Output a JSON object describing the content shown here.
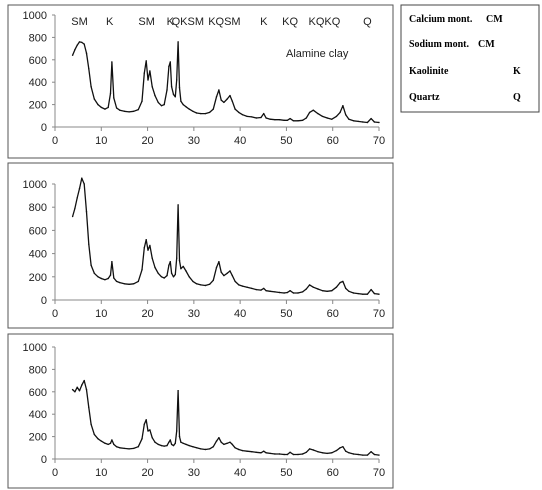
{
  "chart_data": [
    {
      "type": "line",
      "title": "",
      "xlabel": "",
      "ylabel": "",
      "xlim": [
        0,
        70
      ],
      "ylim": [
        0,
        1000
      ],
      "xticks": [
        0,
        10,
        20,
        30,
        40,
        50,
        60,
        70
      ],
      "yticks": [
        0,
        200,
        400,
        600,
        800,
        1000
      ],
      "annotation": "Alamine clay",
      "peak_labels": [
        {
          "text": "SM",
          "x": 5.3
        },
        {
          "text": "K",
          "x": 11.8
        },
        {
          "text": "SM",
          "x": 19.8
        },
        {
          "text": "K",
          "x": 24.9
        },
        {
          "text": "QKSM",
          "x": 28.7
        },
        {
          "text": "KQSM",
          "x": 36.6
        },
        {
          "text": "K",
          "x": 45.1
        },
        {
          "text": "KQ",
          "x": 50.8
        },
        {
          "text": "KQKQ",
          "x": 58.2
        },
        {
          "text": "Q",
          "x": 67.5
        }
      ],
      "series": [
        {
          "x": [
            3.8,
            4.3,
            4.8,
            5.3,
            5.8,
            6.3,
            6.8,
            7.3,
            7.8,
            8.5,
            9.3,
            10.0,
            10.8,
            11.5,
            12.0,
            12.3,
            12.7,
            13.3,
            14.0,
            15.0,
            16.0,
            17.0,
            18.0,
            18.8,
            19.3,
            19.7,
            20.1,
            20.5,
            21.0,
            21.6,
            22.3,
            23.0,
            23.6,
            24.2,
            24.6,
            24.9,
            25.2,
            25.6,
            26.0,
            26.3,
            26.6,
            26.9,
            27.2,
            27.7,
            28.3,
            29.0,
            29.8,
            30.6,
            31.5,
            32.5,
            33.4,
            34.2,
            34.9,
            35.4,
            35.9,
            36.5,
            37.2,
            37.8,
            38.3,
            38.9,
            39.7,
            40.5,
            41.5,
            42.5,
            43.5,
            44.5,
            45.1,
            45.6,
            46.5,
            47.5,
            48.5,
            49.5,
            50.2,
            50.8,
            51.5,
            52.5,
            53.5,
            54.3,
            55.0,
            55.8,
            56.8,
            57.8,
            58.8,
            59.8,
            60.8,
            61.6,
            62.2,
            62.8,
            63.5,
            64.5,
            65.5,
            66.5,
            67.5,
            68.3,
            69.0,
            70.0
          ],
          "values": [
            640,
            690,
            730,
            760,
            755,
            740,
            660,
            520,
            360,
            250,
            200,
            175,
            160,
            175,
            300,
            580,
            260,
            170,
            150,
            140,
            135,
            140,
            155,
            230,
            480,
            590,
            420,
            500,
            360,
            280,
            220,
            190,
            200,
            330,
            540,
            580,
            360,
            290,
            270,
            420,
            760,
            350,
            230,
            200,
            180,
            160,
            140,
            125,
            120,
            120,
            130,
            160,
            270,
            330,
            240,
            220,
            250,
            280,
            230,
            160,
            130,
            110,
            95,
            90,
            80,
            85,
            120,
            80,
            70,
            65,
            65,
            60,
            60,
            75,
            55,
            55,
            60,
            80,
            130,
            150,
            120,
            95,
            80,
            70,
            95,
            130,
            190,
            110,
            70,
            55,
            50,
            45,
            40,
            75,
            45,
            40
          ]
        }
      ]
    },
    {
      "type": "line",
      "title": "",
      "xlabel": "",
      "ylabel": "",
      "xlim": [
        0,
        70
      ],
      "ylim": [
        0,
        1000
      ],
      "xticks": [
        0,
        10,
        20,
        30,
        40,
        50,
        60,
        70
      ],
      "yticks": [
        0,
        200,
        400,
        600,
        800,
        1000
      ],
      "series": [
        {
          "x": [
            3.8,
            4.3,
            4.8,
            5.3,
            5.8,
            6.3,
            6.8,
            7.3,
            7.8,
            8.5,
            9.3,
            10.0,
            10.8,
            11.5,
            12.0,
            12.3,
            12.7,
            13.3,
            14.0,
            15.0,
            16.0,
            17.0,
            18.0,
            18.8,
            19.3,
            19.7,
            20.1,
            20.5,
            21.0,
            21.6,
            22.3,
            23.0,
            23.6,
            24.2,
            24.6,
            24.9,
            25.2,
            25.6,
            26.0,
            26.3,
            26.6,
            26.9,
            27.2,
            27.7,
            28.3,
            29.0,
            29.8,
            30.6,
            31.5,
            32.5,
            33.4,
            34.2,
            34.9,
            35.4,
            35.9,
            36.5,
            37.2,
            37.8,
            38.3,
            38.9,
            39.7,
            40.5,
            41.5,
            42.5,
            43.5,
            44.5,
            45.1,
            45.6,
            46.5,
            47.5,
            48.5,
            49.5,
            50.2,
            50.8,
            51.5,
            52.5,
            53.5,
            54.3,
            55.0,
            55.8,
            56.8,
            57.8,
            58.8,
            59.8,
            60.8,
            61.6,
            62.2,
            62.8,
            63.5,
            64.5,
            65.5,
            66.5,
            67.5,
            68.3,
            69.0,
            70.0
          ],
          "values": [
            720,
            790,
            880,
            960,
            1050,
            1000,
            760,
            480,
            300,
            230,
            200,
            185,
            175,
            185,
            215,
            330,
            190,
            160,
            150,
            140,
            135,
            140,
            160,
            260,
            450,
            520,
            430,
            470,
            360,
            280,
            230,
            200,
            190,
            210,
            300,
            330,
            230,
            200,
            220,
            360,
            820,
            340,
            270,
            290,
            250,
            200,
            160,
            140,
            130,
            125,
            135,
            170,
            280,
            330,
            240,
            210,
            230,
            250,
            210,
            160,
            130,
            120,
            110,
            100,
            90,
            85,
            100,
            80,
            75,
            70,
            65,
            60,
            65,
            80,
            60,
            60,
            70,
            95,
            130,
            110,
            95,
            80,
            75,
            80,
            110,
            150,
            160,
            100,
            75,
            60,
            55,
            50,
            50,
            90,
            55,
            50
          ]
        }
      ]
    },
    {
      "type": "line",
      "title": "",
      "xlabel": "",
      "ylabel": "",
      "xlim": [
        0,
        70
      ],
      "ylim": [
        0,
        1000
      ],
      "xticks": [
        0,
        10,
        20,
        30,
        40,
        50,
        60,
        70
      ],
      "yticks": [
        0,
        200,
        400,
        600,
        800,
        1000
      ],
      "series": [
        {
          "x": [
            3.8,
            4.3,
            4.8,
            5.3,
            5.8,
            6.3,
            6.8,
            7.3,
            7.8,
            8.5,
            9.3,
            10.0,
            10.8,
            11.5,
            12.0,
            12.3,
            12.7,
            13.3,
            14.0,
            15.0,
            16.0,
            17.0,
            18.0,
            18.8,
            19.3,
            19.7,
            20.1,
            20.5,
            21.0,
            21.6,
            22.3,
            23.0,
            23.6,
            24.2,
            24.6,
            24.9,
            25.2,
            25.6,
            26.0,
            26.3,
            26.6,
            26.9,
            27.2,
            27.7,
            28.3,
            29.0,
            29.8,
            30.6,
            31.5,
            32.5,
            33.4,
            34.2,
            34.9,
            35.4,
            35.9,
            36.5,
            37.2,
            37.8,
            38.3,
            38.9,
            39.7,
            40.5,
            41.5,
            42.5,
            43.5,
            44.5,
            45.1,
            45.6,
            46.5,
            47.5,
            48.5,
            49.5,
            50.2,
            50.8,
            51.5,
            52.5,
            53.5,
            54.3,
            55.0,
            55.8,
            56.8,
            57.8,
            58.8,
            59.8,
            60.8,
            61.6,
            62.2,
            62.8,
            63.5,
            64.5,
            65.5,
            66.5,
            67.5,
            68.3,
            69.0,
            70.0
          ],
          "values": [
            620,
            600,
            640,
            610,
            660,
            700,
            620,
            460,
            310,
            220,
            180,
            160,
            140,
            130,
            140,
            170,
            130,
            110,
            100,
            95,
            90,
            95,
            110,
            180,
            310,
            350,
            250,
            260,
            190,
            150,
            130,
            120,
            115,
            120,
            150,
            170,
            130,
            120,
            140,
            250,
            610,
            200,
            150,
            140,
            130,
            120,
            110,
            100,
            90,
            85,
            90,
            110,
            160,
            190,
            150,
            130,
            140,
            150,
            130,
            100,
            85,
            75,
            70,
            65,
            60,
            55,
            70,
            55,
            50,
            45,
            45,
            40,
            40,
            60,
            40,
            40,
            45,
            60,
            90,
            80,
            65,
            55,
            50,
            55,
            75,
            100,
            110,
            70,
            55,
            45,
            40,
            35,
            35,
            65,
            40,
            35
          ]
        }
      ]
    }
  ],
  "legend": [
    {
      "name": "Calcium mont.",
      "code": "CM"
    },
    {
      "name": "Sodium mont.",
      "code": "CM"
    },
    {
      "name": "Kaolinite",
      "code": "K"
    },
    {
      "name": "Quartz",
      "code": "Q"
    }
  ]
}
